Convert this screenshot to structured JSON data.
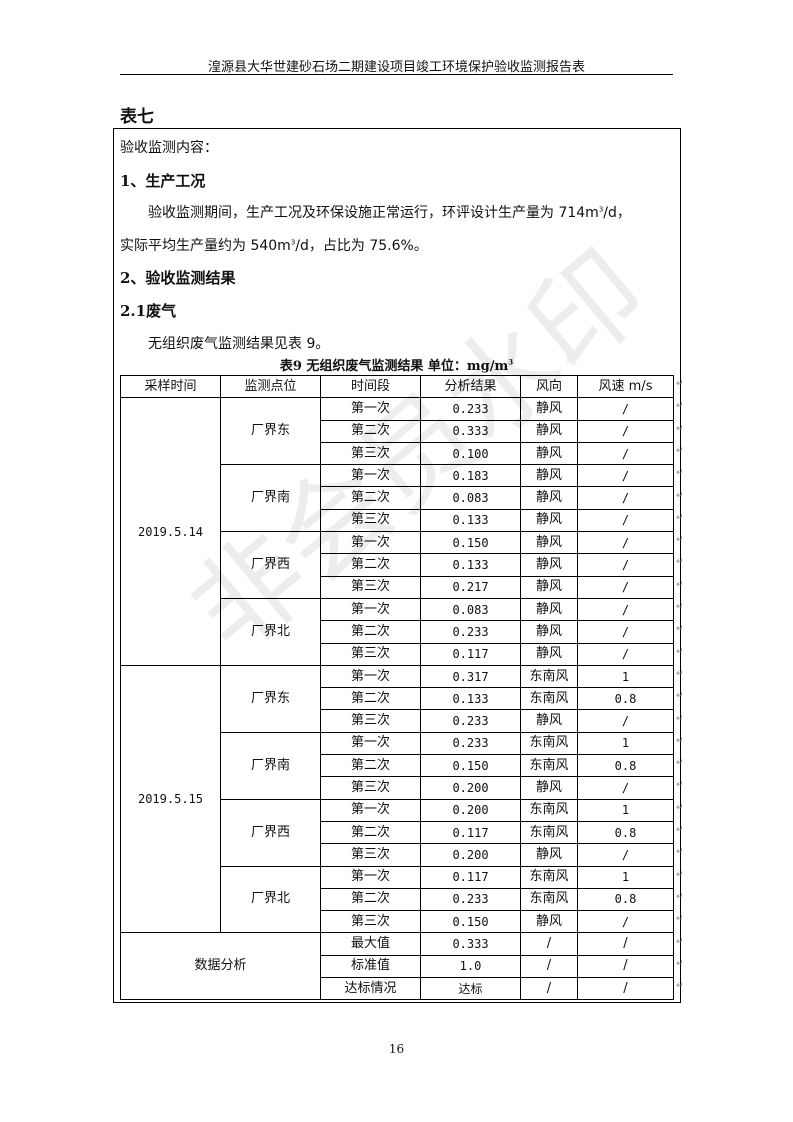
{
  "header": {
    "title": "湟源县大华世建砂石场二期建设项目竣工环境保护验收监测报告表"
  },
  "section_title": "表七",
  "content": {
    "intro": "验收监测内容：",
    "h1": "1、生产工况",
    "p1_a": "验收监测期间，生产工况及环保设施正常运行，环评设计生产量为 714m",
    "p1_b": "/d，",
    "p2_a": "实际平均生产量约为 540m",
    "p2_b": "/d，占比为 75.6%。",
    "sup": "3",
    "h2": "2、验收监测结果",
    "h3": "2.1废气",
    "p3": "无组织废气监测结果见表 9。"
  },
  "table": {
    "caption": "表9  无组织废气监测结果  单位：mg/m",
    "caption_sup": "3",
    "headers": [
      "采样时间",
      "监测点位",
      "时间段",
      "分析结果",
      "风向",
      "风速 m/s"
    ],
    "groups": [
      {
        "date": "2019.5.14",
        "sites": [
          {
            "site": "厂界东",
            "rows": [
              [
                "第一次",
                "0.233",
                "静风",
                "/"
              ],
              [
                "第二次",
                "0.333",
                "静风",
                "/"
              ],
              [
                "第三次",
                "0.100",
                "静风",
                "/"
              ]
            ]
          },
          {
            "site": "厂界南",
            "rows": [
              [
                "第一次",
                "0.183",
                "静风",
                "/"
              ],
              [
                "第二次",
                "0.083",
                "静风",
                "/"
              ],
              [
                "第三次",
                "0.133",
                "静风",
                "/"
              ]
            ]
          },
          {
            "site": "厂界西",
            "rows": [
              [
                "第一次",
                "0.150",
                "静风",
                "/"
              ],
              [
                "第二次",
                "0.133",
                "静风",
                "/"
              ],
              [
                "第三次",
                "0.217",
                "静风",
                "/"
              ]
            ]
          },
          {
            "site": "厂界北",
            "rows": [
              [
                "第一次",
                "0.083",
                "静风",
                "/"
              ],
              [
                "第二次",
                "0.233",
                "静风",
                "/"
              ],
              [
                "第三次",
                "0.117",
                "静风",
                "/"
              ]
            ]
          }
        ]
      },
      {
        "date": "2019.5.15",
        "sites": [
          {
            "site": "厂界东",
            "rows": [
              [
                "第一次",
                "0.317",
                "东南风",
                "1"
              ],
              [
                "第二次",
                "0.133",
                "东南风",
                "0.8"
              ],
              [
                "第三次",
                "0.233",
                "静风",
                "/"
              ]
            ]
          },
          {
            "site": "厂界南",
            "rows": [
              [
                "第一次",
                "0.233",
                "东南风",
                "1"
              ],
              [
                "第二次",
                "0.150",
                "东南风",
                "0.8"
              ],
              [
                "第三次",
                "0.200",
                "静风",
                "/"
              ]
            ]
          },
          {
            "site": "厂界西",
            "rows": [
              [
                "第一次",
                "0.200",
                "东南风",
                "1"
              ],
              [
                "第二次",
                "0.117",
                "东南风",
                "0.8"
              ],
              [
                "第三次",
                "0.200",
                "静风",
                "/"
              ]
            ]
          },
          {
            "site": "厂界北",
            "rows": [
              [
                "第一次",
                "0.117",
                "东南风",
                "1"
              ],
              [
                "第二次",
                "0.233",
                "东南风",
                "0.8"
              ],
              [
                "第三次",
                "0.150",
                "静风",
                "/"
              ]
            ]
          }
        ]
      }
    ],
    "analysis": {
      "label": "数据分析",
      "rows": [
        [
          "最大值",
          "0.333",
          "/",
          "/"
        ],
        [
          "标准值",
          "1.0",
          "/",
          "/"
        ],
        [
          "达标情况",
          "达标",
          "/",
          "/"
        ]
      ]
    }
  },
  "page_number": "16",
  "watermark": "非会员水印"
}
